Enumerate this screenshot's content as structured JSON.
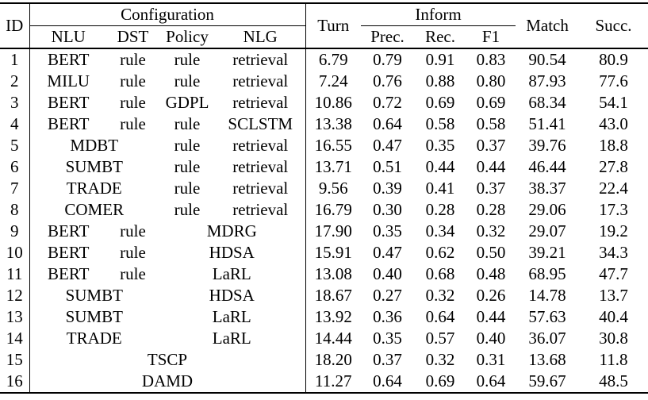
{
  "colors": {
    "text": "#000000",
    "rule": "#000000",
    "background": "#ffffff"
  },
  "table": {
    "header": {
      "id": "ID",
      "configuration": "Configuration",
      "nlu": "NLU",
      "dst": "DST",
      "policy": "Policy",
      "nlg": "NLG",
      "turn": "Turn",
      "inform": "Inform",
      "prec": "Prec.",
      "rec": "Rec.",
      "f1": "F1",
      "match": "Match",
      "succ": "Succ."
    },
    "rows": [
      {
        "id": "1",
        "config": [
          [
            "BERT",
            1
          ],
          [
            "rule",
            1
          ],
          [
            "rule",
            1
          ],
          [
            "retrieval",
            1
          ]
        ],
        "metrics": [
          "6.79",
          "0.79",
          "0.91",
          "0.83",
          "90.54",
          "80.9"
        ]
      },
      {
        "id": "2",
        "config": [
          [
            "MILU",
            1
          ],
          [
            "rule",
            1
          ],
          [
            "rule",
            1
          ],
          [
            "retrieval",
            1
          ]
        ],
        "metrics": [
          "7.24",
          "0.76",
          "0.88",
          "0.80",
          "87.93",
          "77.6"
        ]
      },
      {
        "id": "3",
        "config": [
          [
            "BERT",
            1
          ],
          [
            "rule",
            1
          ],
          [
            "GDPL",
            1
          ],
          [
            "retrieval",
            1
          ]
        ],
        "metrics": [
          "10.86",
          "0.72",
          "0.69",
          "0.69",
          "68.34",
          "54.1"
        ]
      },
      {
        "id": "4",
        "config": [
          [
            "BERT",
            1
          ],
          [
            "rule",
            1
          ],
          [
            "rule",
            1
          ],
          [
            "SCLSTM",
            1
          ]
        ],
        "metrics": [
          "13.38",
          "0.64",
          "0.58",
          "0.58",
          "51.41",
          "43.0"
        ]
      },
      {
        "id": "5",
        "config": [
          [
            "MDBT",
            2
          ],
          [
            "rule",
            1
          ],
          [
            "retrieval",
            1
          ]
        ],
        "metrics": [
          "16.55",
          "0.47",
          "0.35",
          "0.37",
          "39.76",
          "18.8"
        ]
      },
      {
        "id": "6",
        "config": [
          [
            "SUMBT",
            2
          ],
          [
            "rule",
            1
          ],
          [
            "retrieval",
            1
          ]
        ],
        "metrics": [
          "13.71",
          "0.51",
          "0.44",
          "0.44",
          "46.44",
          "27.8"
        ]
      },
      {
        "id": "7",
        "config": [
          [
            "TRADE",
            2
          ],
          [
            "rule",
            1
          ],
          [
            "retrieval",
            1
          ]
        ],
        "metrics": [
          "9.56",
          "0.39",
          "0.41",
          "0.37",
          "38.37",
          "22.4"
        ]
      },
      {
        "id": "8",
        "config": [
          [
            "COMER",
            2
          ],
          [
            "rule",
            1
          ],
          [
            "retrieval",
            1
          ]
        ],
        "metrics": [
          "16.79",
          "0.30",
          "0.28",
          "0.28",
          "29.06",
          "17.3"
        ]
      },
      {
        "id": "9",
        "config": [
          [
            "BERT",
            1
          ],
          [
            "rule",
            1
          ],
          [
            "MDRG",
            2
          ]
        ],
        "metrics": [
          "17.90",
          "0.35",
          "0.34",
          "0.32",
          "29.07",
          "19.2"
        ]
      },
      {
        "id": "10",
        "config": [
          [
            "BERT",
            1
          ],
          [
            "rule",
            1
          ],
          [
            "HDSA",
            2
          ]
        ],
        "metrics": [
          "15.91",
          "0.47",
          "0.62",
          "0.50",
          "39.21",
          "34.3"
        ]
      },
      {
        "id": "11",
        "config": [
          [
            "BERT",
            1
          ],
          [
            "rule",
            1
          ],
          [
            "LaRL",
            2
          ]
        ],
        "metrics": [
          "13.08",
          "0.40",
          "0.68",
          "0.48",
          "68.95",
          "47.7"
        ]
      },
      {
        "id": "12",
        "config": [
          [
            "SUMBT",
            2
          ],
          [
            "HDSA",
            2
          ]
        ],
        "metrics": [
          "18.67",
          "0.27",
          "0.32",
          "0.26",
          "14.78",
          "13.7"
        ]
      },
      {
        "id": "13",
        "config": [
          [
            "SUMBT",
            2
          ],
          [
            "LaRL",
            2
          ]
        ],
        "metrics": [
          "13.92",
          "0.36",
          "0.64",
          "0.44",
          "57.63",
          "40.4"
        ]
      },
      {
        "id": "14",
        "config": [
          [
            "TRADE",
            2
          ],
          [
            "LaRL",
            2
          ]
        ],
        "metrics": [
          "14.44",
          "0.35",
          "0.57",
          "0.40",
          "36.07",
          "30.8"
        ]
      },
      {
        "id": "15",
        "config": [
          [
            "TSCP",
            4
          ]
        ],
        "metrics": [
          "18.20",
          "0.37",
          "0.32",
          "0.31",
          "13.68",
          "11.8"
        ]
      },
      {
        "id": "16",
        "config": [
          [
            "DAMD",
            4
          ]
        ],
        "metrics": [
          "11.27",
          "0.64",
          "0.69",
          "0.64",
          "59.67",
          "48.5"
        ]
      }
    ]
  }
}
